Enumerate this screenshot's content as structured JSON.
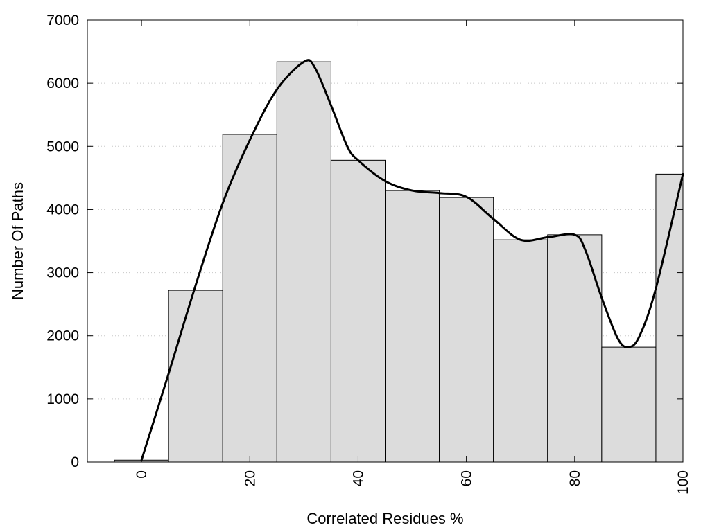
{
  "chart_data": {
    "type": "bar",
    "xlabel": "Correlated Residues %",
    "ylabel": "Number Of Paths",
    "xlim": [
      -10,
      100
    ],
    "ylim": [
      0,
      7000
    ],
    "x_ticks": [
      0,
      20,
      40,
      60,
      80,
      100
    ],
    "y_ticks": [
      0,
      1000,
      2000,
      3000,
      4000,
      5000,
      6000,
      7000
    ],
    "grid": "horizontal dotted",
    "bars": {
      "centers": [
        0,
        10,
        20,
        30,
        40,
        50,
        60,
        70,
        80,
        90,
        100
      ],
      "width": 10,
      "values": [
        30,
        2720,
        5190,
        6340,
        4780,
        4300,
        4190,
        3520,
        3600,
        1820,
        4560
      ]
    },
    "curve": {
      "x": [
        0,
        5,
        10,
        15,
        20,
        25,
        30,
        32,
        35,
        38,
        40,
        45,
        50,
        55,
        60,
        65,
        70,
        75,
        80,
        82,
        85,
        88,
        90,
        92,
        95,
        100
      ],
      "y": [
        30,
        1400,
        2800,
        4100,
        5100,
        5900,
        6340,
        6250,
        5650,
        5000,
        4780,
        4450,
        4300,
        4260,
        4200,
        3850,
        3520,
        3560,
        3600,
        3350,
        2600,
        1950,
        1820,
        2000,
        2750,
        4560
      ]
    },
    "colors": {
      "bar_fill": "#dcdcdc",
      "bar_stroke": "#000000",
      "curve": "#000000",
      "grid": "#c8c8c8"
    }
  }
}
